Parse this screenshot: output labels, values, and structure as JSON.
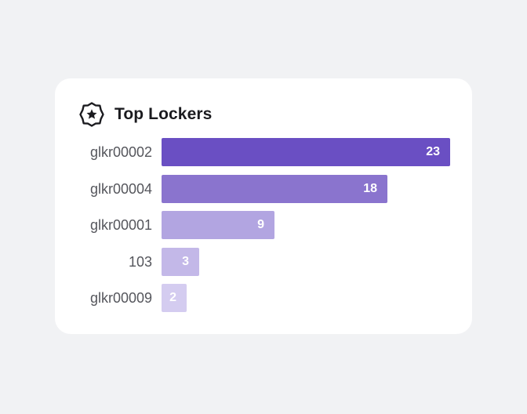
{
  "card": {
    "title": "Top Lockers",
    "icon": "badge-star-icon"
  },
  "colors": {
    "page_background": "#F1F2F4",
    "card_background": "#FFFFFF",
    "label_text": "#55565C",
    "title_text": "#1B1B1F",
    "bar_colors": [
      "#6A4FC3",
      "#8A74CE",
      "#B2A5E1",
      "#C3B8E8",
      "#D4CCF0"
    ]
  },
  "chart_data": {
    "type": "bar",
    "orientation": "horizontal",
    "title": "Top Lockers",
    "categories": [
      "glkr00002",
      "glkr00004",
      "glkr00001",
      "103",
      "glkr00009"
    ],
    "values": [
      23,
      18,
      9,
      3,
      2
    ],
    "xlim": [
      0,
      23
    ],
    "grid": false,
    "data_labels": true
  }
}
